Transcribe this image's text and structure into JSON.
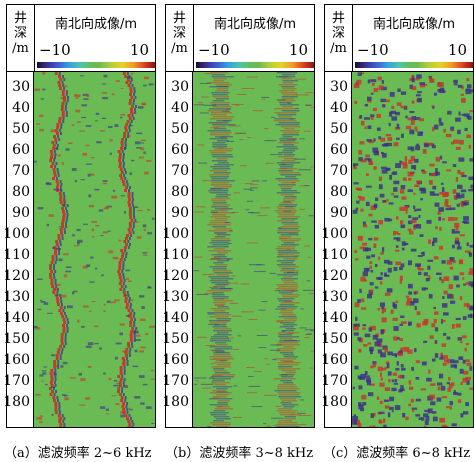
{
  "header": {
    "well_depth": [
      "井",
      "深"
    ],
    "unit": "/m",
    "title": "南北向成像/m"
  },
  "colorbar": {
    "min": "−10",
    "max": "10"
  },
  "depths": [
    "30",
    "40",
    "50",
    "60",
    "70",
    "80",
    "90",
    "100",
    "110",
    "120",
    "130",
    "140",
    "150",
    "160",
    "170",
    "180"
  ],
  "panels": [
    {
      "caption": "（a）滤波频率 2~6 kHz"
    },
    {
      "caption": "（b）滤波频率 3~8 kHz"
    },
    {
      "caption": "（c）滤波频率 6~8 kHz"
    }
  ],
  "colors": {
    "background": "#6bbb55",
    "positive": "#c8322a",
    "negative": "#3b2c8a"
  }
}
